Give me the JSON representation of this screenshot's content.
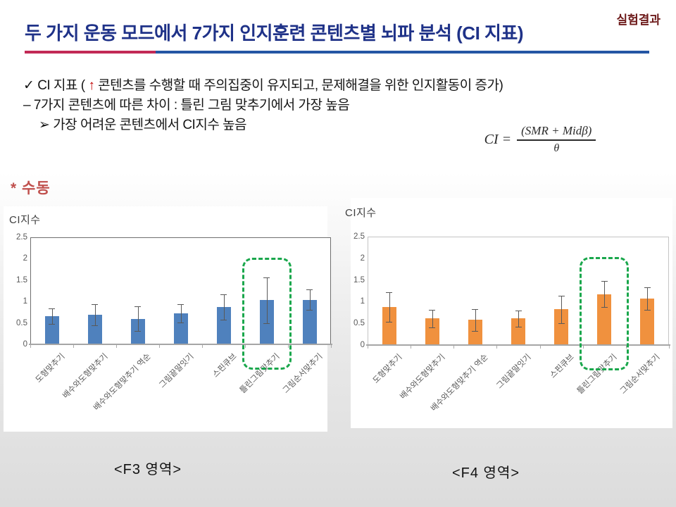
{
  "slide": {
    "corner_tag": "실험결과",
    "title": "두 가지 운동 모드에서 7가지 인지훈련 콘텐츠별 뇌파 분석 (CI 지표)",
    "bullets": {
      "line1_marker": "✓",
      "line1_pre": "CI 지표 ( ",
      "line1_arrow": "↑",
      "line1_post": " 콘텐츠를 수행할 때 주의집중이 유지되고, 문제해결을 위한 인지활동이 증가)",
      "line2": "– 7가지 콘텐츠에 따른 차이 : 틀린 그림 맞추기에서 가장 높음",
      "line3_marker": "➢",
      "line3_text": "가장 어려운 콘텐츠에서 CI지수 높음"
    },
    "formula": {
      "lhs": "CI =",
      "numerator": "(SMR + Midβ)",
      "denominator": "θ"
    },
    "mode_label": "* 수동",
    "f3_caption": "<F3 영역>",
    "f4_caption": "<F4 영역>"
  },
  "colors": {
    "title_blue": "#1f3288",
    "rule_red": "#c22a56",
    "rule_blue": "#2456a4",
    "corner_tag_maroon": "#6d1a1a",
    "mode_red": "#c0504d",
    "arrow_red": "#c00000",
    "bar_blue": "#4f81bd",
    "bar_orange": "#f0913e",
    "highlight_green": "#1aa74c"
  },
  "chart_data": [
    {
      "type": "bar",
      "title": "CI지수",
      "region_caption": "<F3 영역>",
      "categories": [
        "도형맞추기",
        "배수와도형맞추기",
        "배수와도형맞추기 역순",
        "그림끝말잇기",
        "스핀큐브",
        "틀린그림맞추기",
        "그림순서맞추기"
      ],
      "values": [
        0.66,
        0.69,
        0.6,
        0.72,
        0.87,
        1.03,
        1.04
      ],
      "errors": [
        0.18,
        0.24,
        0.29,
        0.21,
        0.3,
        0.53,
        0.24
      ],
      "highlight_index": 5,
      "bar_color": "#4f81bd",
      "ylim": [
        0,
        2.5
      ],
      "yticks": [
        "0",
        "0.5",
        "1",
        "1.5",
        "2",
        "2.5"
      ],
      "grid": false,
      "legend": "none"
    },
    {
      "type": "bar",
      "title": "CI지수",
      "region_caption": "<F4 영역>",
      "categories": [
        "도형맞추기",
        "배수와도형맞추기",
        "배수와도형맞추기 역순",
        "그림끝말잇기",
        "스핀큐브",
        "틀린그림맞추기",
        "그림순서맞추기"
      ],
      "values": [
        0.88,
        0.61,
        0.58,
        0.61,
        0.82,
        1.17,
        1.07
      ],
      "errors": [
        0.34,
        0.2,
        0.25,
        0.18,
        0.31,
        0.3,
        0.26
      ],
      "highlight_index": 5,
      "bar_color": "#f0913e",
      "ylim": [
        0,
        2.5
      ],
      "yticks": [
        "0",
        "0.5",
        "1",
        "1.5",
        "2",
        "2.5"
      ],
      "grid": false,
      "legend": "none"
    }
  ]
}
